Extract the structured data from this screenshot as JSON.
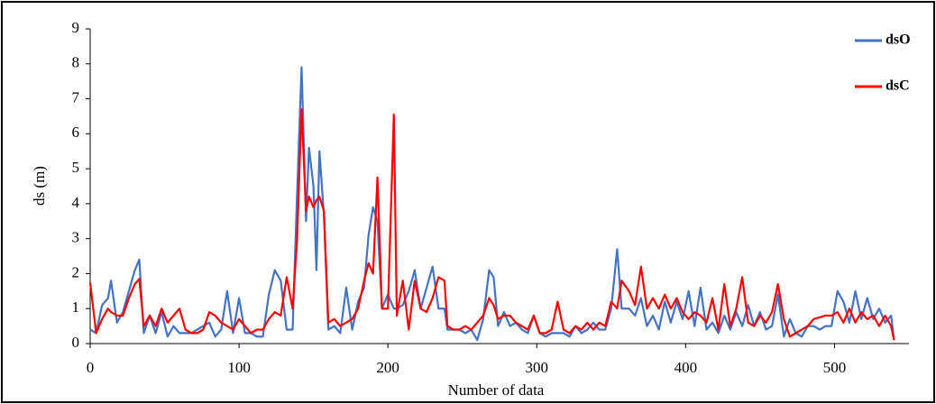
{
  "chart_data": {
    "type": "line",
    "xlabel": "Number of data",
    "ylabel": "ds (m)",
    "x": [
      0,
      4,
      8,
      12,
      14,
      18,
      22,
      26,
      30,
      33,
      36,
      40,
      44,
      48,
      52,
      56,
      60,
      64,
      68,
      72,
      76,
      80,
      84,
      88,
      92,
      96,
      100,
      104,
      108,
      112,
      116,
      120,
      124,
      128,
      132,
      136,
      139,
      142,
      145,
      147,
      150,
      152,
      154,
      157,
      160,
      164,
      168,
      172,
      176,
      180,
      184,
      187,
      190,
      193,
      196,
      200,
      204,
      206,
      210,
      214,
      218,
      222,
      226,
      230,
      234,
      238,
      240,
      244,
      248,
      252,
      256,
      260,
      264,
      268,
      271,
      274,
      278,
      282,
      286,
      290,
      294,
      298,
      302,
      306,
      310,
      314,
      318,
      322,
      326,
      330,
      334,
      338,
      342,
      346,
      350,
      354,
      357,
      362,
      366,
      370,
      374,
      378,
      382,
      386,
      390,
      394,
      398,
      402,
      406,
      410,
      414,
      418,
      422,
      426,
      430,
      434,
      438,
      442,
      446,
      450,
      454,
      458,
      462,
      466,
      470,
      474,
      478,
      482,
      486,
      490,
      494,
      498,
      502,
      506,
      510,
      514,
      518,
      522,
      526,
      530,
      534,
      538,
      540
    ],
    "series": [
      {
        "name": "dsO",
        "color": "#4472c4",
        "values": [
          0.4,
          0.3,
          1.1,
          1.3,
          1.8,
          0.6,
          0.9,
          1.5,
          2.1,
          2.4,
          0.3,
          0.8,
          0.3,
          0.9,
          0.2,
          0.5,
          0.3,
          0.3,
          0.3,
          0.4,
          0.5,
          0.6,
          0.2,
          0.4,
          1.5,
          0.3,
          1.3,
          0.3,
          0.3,
          0.2,
          0.2,
          1.4,
          2.1,
          1.8,
          0.4,
          0.4,
          4.3,
          7.9,
          3.5,
          5.6,
          4.5,
          2.1,
          5.5,
          3.7,
          0.4,
          0.5,
          0.3,
          1.6,
          0.4,
          1.2,
          1.6,
          3.1,
          3.9,
          3.5,
          1.0,
          1.4,
          1.0,
          1.0,
          1.1,
          1.5,
          2.1,
          1.0,
          1.6,
          2.2,
          1.0,
          1.0,
          0.4,
          0.4,
          0.4,
          0.3,
          0.4,
          0.1,
          0.7,
          2.1,
          1.9,
          0.5,
          0.9,
          0.5,
          0.6,
          0.4,
          0.3,
          0.8,
          0.3,
          0.2,
          0.3,
          0.3,
          0.3,
          0.2,
          0.5,
          0.3,
          0.4,
          0.6,
          0.4,
          0.4,
          1.0,
          2.7,
          1.0,
          1.0,
          0.8,
          1.3,
          0.5,
          0.8,
          0.4,
          1.2,
          0.6,
          1.2,
          0.7,
          1.5,
          0.5,
          1.6,
          0.4,
          0.6,
          0.3,
          0.8,
          0.4,
          0.9,
          0.5,
          1.1,
          0.5,
          0.9,
          0.4,
          0.5,
          1.4,
          0.2,
          0.7,
          0.3,
          0.2,
          0.5,
          0.5,
          0.4,
          0.5,
          0.5,
          1.5,
          1.2,
          0.6,
          1.5,
          0.7,
          1.3,
          0.7,
          1.0,
          0.6,
          0.8,
          0.1
        ]
      },
      {
        "name": "dsC",
        "color": "#ff0000",
        "values": [
          1.75,
          0.3,
          0.7,
          1.0,
          0.9,
          0.8,
          0.8,
          1.3,
          1.7,
          1.85,
          0.5,
          0.8,
          0.5,
          1.0,
          0.6,
          0.8,
          1.0,
          0.4,
          0.3,
          0.3,
          0.4,
          0.9,
          0.8,
          0.6,
          0.5,
          0.4,
          0.7,
          0.5,
          0.3,
          0.4,
          0.4,
          0.7,
          0.9,
          0.8,
          1.9,
          1.0,
          3.0,
          6.7,
          3.8,
          4.2,
          3.9,
          4.1,
          4.2,
          3.8,
          0.6,
          0.7,
          0.5,
          0.6,
          0.7,
          1.0,
          1.8,
          2.3,
          2.0,
          4.75,
          1.0,
          1.0,
          6.55,
          0.8,
          1.8,
          0.4,
          1.8,
          1.0,
          0.9,
          1.3,
          1.9,
          1.8,
          0.5,
          0.4,
          0.4,
          0.5,
          0.4,
          0.6,
          0.8,
          1.3,
          1.1,
          0.7,
          0.8,
          0.8,
          0.6,
          0.5,
          0.4,
          0.8,
          0.3,
          0.3,
          0.4,
          1.2,
          0.4,
          0.3,
          0.5,
          0.4,
          0.6,
          0.4,
          0.6,
          0.5,
          1.2,
          1.0,
          1.8,
          1.5,
          1.1,
          2.2,
          1.0,
          1.3,
          1.0,
          1.4,
          1.0,
          1.3,
          0.9,
          0.7,
          0.9,
          0.8,
          0.6,
          1.3,
          0.4,
          1.7,
          0.5,
          1.0,
          1.9,
          0.6,
          0.5,
          0.8,
          0.6,
          0.9,
          1.7,
          0.7,
          0.2,
          0.3,
          0.4,
          0.5,
          0.7,
          0.75,
          0.8,
          0.8,
          0.9,
          0.6,
          1.0,
          0.6,
          0.9,
          0.7,
          0.8,
          0.5,
          0.8,
          0.5,
          0.1
        ]
      }
    ],
    "xlim": [
      0,
      550
    ],
    "xticks": [
      0,
      100,
      200,
      300,
      400,
      500
    ],
    "ylim": [
      0,
      9
    ],
    "yticks": [
      0,
      1,
      2,
      3,
      4,
      5,
      6,
      7,
      8,
      9
    ],
    "legend": "upper right"
  }
}
